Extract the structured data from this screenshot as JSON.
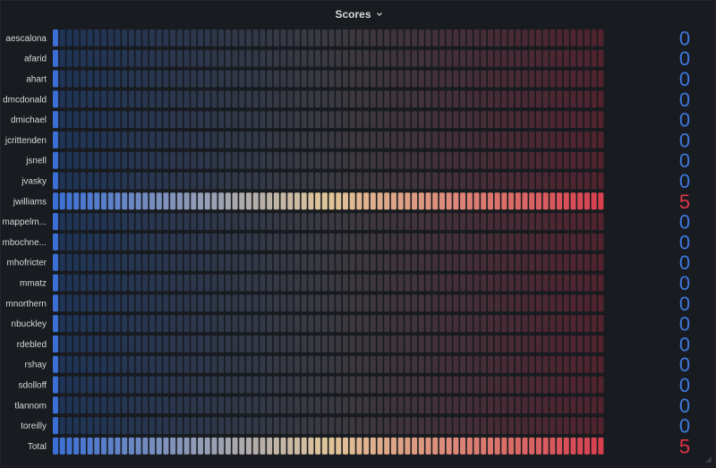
{
  "panel": {
    "title": "Scores",
    "icon": "chevron-down-icon"
  },
  "colors": {
    "background": "#181b1f",
    "unlit_low": "#1e3458",
    "unlit_mid": "#3a3a40",
    "unlit_high": "#50232f",
    "lit_low": "#3b6fd4",
    "lit_mid": "#e0c59a",
    "lit_high": "#d7404f",
    "value_blue": "#3f78e0",
    "value_red": "#e0354a"
  },
  "chart_data": {
    "type": "bar-gauge",
    "display_mode": "retro-lcd",
    "orientation": "horizontal",
    "min": 0,
    "max": 5,
    "color_scheme": "blue-yellow-red continuous",
    "rows": [
      {
        "label": "aescalona",
        "value": "0"
      },
      {
        "label": "afarid",
        "value": "0"
      },
      {
        "label": "ahart",
        "value": "0"
      },
      {
        "label": "dmcdonald",
        "value": "0"
      },
      {
        "label": "dmichael",
        "value": "0"
      },
      {
        "label": "jcrittenden",
        "value": "0"
      },
      {
        "label": "jsnell",
        "value": "0"
      },
      {
        "label": "jvasky",
        "value": "0"
      },
      {
        "label": "jwilliams",
        "value": "5"
      },
      {
        "label": "mappelm...",
        "value": "0"
      },
      {
        "label": "mbochne...",
        "value": "0"
      },
      {
        "label": "mhofricter",
        "value": "0"
      },
      {
        "label": "mmatz",
        "value": "0"
      },
      {
        "label": "mnorthern",
        "value": "0"
      },
      {
        "label": "nbuckley",
        "value": "0"
      },
      {
        "label": "rdebled",
        "value": "0"
      },
      {
        "label": "rshay",
        "value": "0"
      },
      {
        "label": "sdolloff",
        "value": "0"
      },
      {
        "label": "tlannom",
        "value": "0"
      },
      {
        "label": "toreilly",
        "value": "0"
      },
      {
        "label": "Total",
        "value": "5"
      }
    ]
  }
}
